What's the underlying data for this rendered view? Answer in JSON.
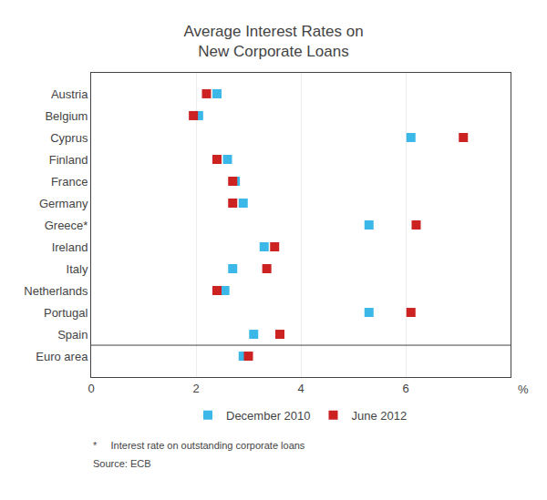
{
  "chart_data": {
    "type": "scatter",
    "orientation": "horizontal",
    "title": "Average Interest Rates on\nNew Corporate Loans",
    "categories": [
      "Austria",
      "Belgium",
      "Cyprus",
      "Finland",
      "France",
      "Germany",
      "Greece*",
      "Ireland",
      "Italy",
      "Netherlands",
      "Portugal",
      "Spain",
      "Euro area"
    ],
    "series": [
      {
        "name": "December 2010",
        "color": "#3BB8E8",
        "marker": "square",
        "values": [
          2.4,
          2.05,
          6.1,
          2.6,
          2.75,
          2.9,
          5.3,
          3.3,
          2.7,
          2.55,
          5.3,
          3.1,
          2.9
        ]
      },
      {
        "name": "June 2012",
        "color": "#CC2222",
        "marker": "square",
        "values": [
          2.2,
          1.95,
          7.1,
          2.4,
          2.7,
          2.7,
          6.2,
          3.5,
          3.35,
          2.4,
          6.1,
          3.6,
          3.0
        ]
      }
    ],
    "xlim": [
      0,
      8
    ],
    "xticks": [
      0,
      2,
      4,
      6
    ],
    "xlabel": "%",
    "grid": true,
    "legend": "bottom",
    "annotations": [
      "*     Interest rate on outstanding corporate loans",
      "Source: ECB"
    ]
  }
}
